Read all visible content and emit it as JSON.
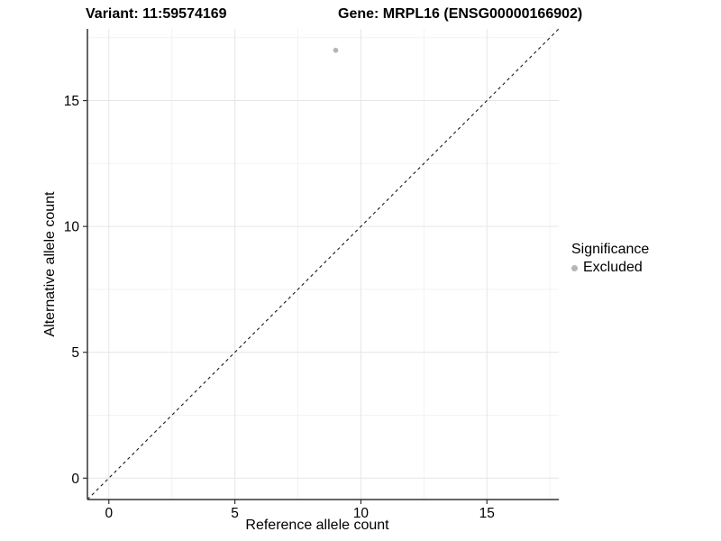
{
  "header": {
    "variant_title": "Variant: 11:59574169",
    "gene_title": "Gene: MRPL16 (ENSG00000166902)"
  },
  "chart_data": {
    "type": "scatter",
    "xlabel": "Reference allele count",
    "ylabel": "Alternative allele count",
    "xlim": [
      -0.85,
      17.85
    ],
    "ylim": [
      -0.85,
      17.85
    ],
    "xticks": [
      0,
      5,
      10,
      15
    ],
    "yticks": [
      0,
      5,
      10,
      15
    ],
    "x_minor_ticks": [
      2.5,
      7.5,
      12.5,
      17.5
    ],
    "y_minor_ticks": [
      2.5,
      7.5,
      12.5,
      17.5
    ],
    "grid": "major+minor",
    "reference_line": {
      "type": "identity",
      "slope": 1,
      "intercept": 0,
      "style": "dashed",
      "color": "#1a1a1a"
    },
    "series": [
      {
        "name": "Excluded",
        "color": "#b5b5b5",
        "points": [
          [
            9,
            17
          ]
        ]
      }
    ],
    "legend": {
      "title": "Significance",
      "position": "right",
      "items": [
        {
          "label": "Excluded",
          "color": "#b5b5b5"
        }
      ]
    }
  },
  "colors": {
    "background": "#ffffff",
    "axis_line": "#333333",
    "grid_major": "#e6e6e6",
    "grid_minor": "#f2f2f2",
    "text": "#000000"
  }
}
